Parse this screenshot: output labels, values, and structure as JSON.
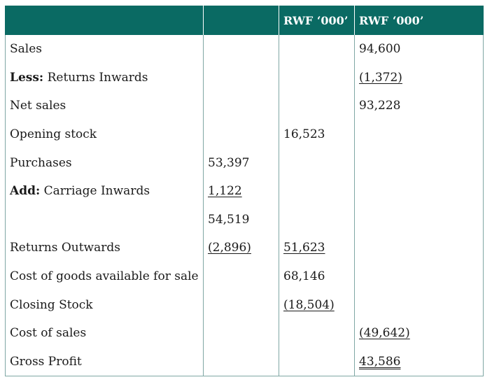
{
  "header": {
    "col0": "",
    "col1": "",
    "col2": "RWF ‘000’",
    "col3": "RWF ‘000’"
  },
  "rows": [
    {
      "prefix": "",
      "label": "Sales",
      "c1": "",
      "c2": "",
      "c3": "94,600"
    },
    {
      "prefix": "Less:",
      "label": " Returns Inwards",
      "c1": "",
      "c2": "",
      "c3": "(1,372)"
    },
    {
      "prefix": "",
      "label": "Net sales",
      "c1": "",
      "c2": "",
      "c3": "93,228"
    },
    {
      "prefix": "",
      "label": "Opening stock",
      "c1": "",
      "c2": "16,523",
      "c3": ""
    },
    {
      "prefix": "",
      "label": "Purchases",
      "c1": "53,397",
      "c2": "",
      "c3": ""
    },
    {
      "prefix": "Add:",
      "label": " Carriage Inwards",
      "c1": "1,122",
      "c2": "",
      "c3": ""
    },
    {
      "prefix": "",
      "label": "",
      "c1": "54,519",
      "c2": "",
      "c3": ""
    },
    {
      "prefix": "",
      "label": "Returns Outwards",
      "c1": "(2,896)",
      "c2": "51,623",
      "c3": ""
    },
    {
      "prefix": "",
      "label": "Cost of goods available for sale",
      "c1": "",
      "c2": "68,146",
      "c3": ""
    },
    {
      "prefix": "",
      "label": "Closing Stock",
      "c1": "",
      "c2": "(18,504)",
      "c3": ""
    },
    {
      "prefix": "",
      "label": "Cost of sales",
      "c1": "",
      "c2": "",
      "c3": "(49,642)"
    },
    {
      "prefix": "",
      "label": "Gross Profit",
      "c1": "",
      "c2": "",
      "c3": "43,586"
    }
  ],
  "colors": {
    "header_bg": "#0a6a63",
    "header_text": "#ffffff",
    "grid_line": "#7fa7a4"
  }
}
